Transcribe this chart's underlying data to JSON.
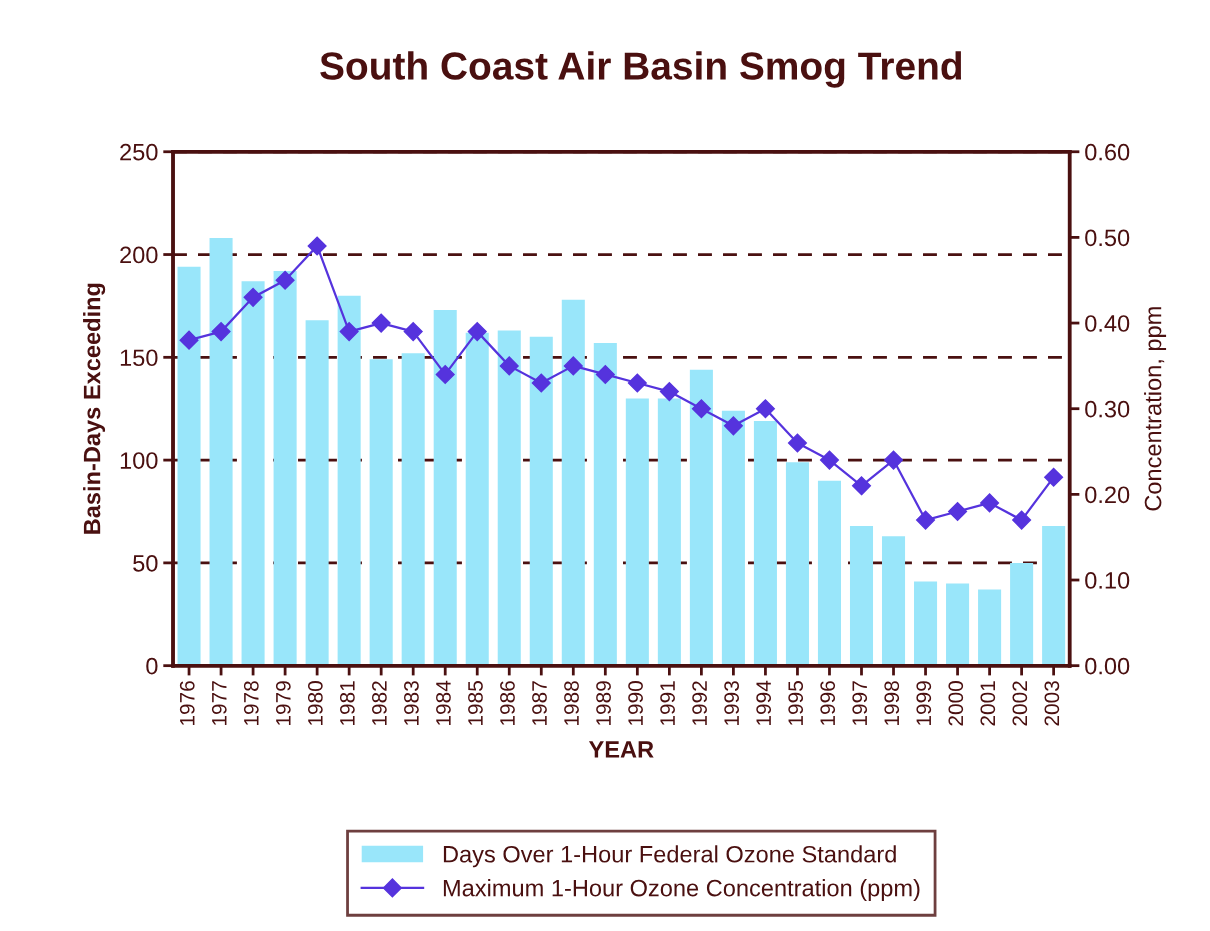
{
  "chart_data": {
    "type": "bar",
    "title": "South Coast Air Basin Smog Trend",
    "xlabel": "YEAR",
    "ylabel": "Basin-Days Exceeding",
    "y2label": "Concentration, ppm",
    "categories": [
      "1976",
      "1977",
      "1978",
      "1979",
      "1980",
      "1981",
      "1982",
      "1983",
      "1984",
      "1985",
      "1986",
      "1987",
      "1988",
      "1989",
      "1990",
      "1991",
      "1992",
      "1993",
      "1994",
      "1995",
      "1996",
      "1997",
      "1998",
      "1999",
      "2000",
      "2001",
      "2002",
      "2003"
    ],
    "series": [
      {
        "name": "Days Over 1-Hour Federal Ozone Standard",
        "color": "#99e6fa",
        "values": [
          194,
          208,
          187,
          192,
          168,
          180,
          149,
          152,
          173,
          162,
          163,
          160,
          178,
          157,
          130,
          130,
          144,
          124,
          119,
          99,
          90,
          68,
          63,
          41,
          40,
          37,
          50,
          68
        ]
      },
      {
        "name": "Maximum 1-Hour Ozone Concentration (ppm)",
        "type": "line",
        "axis": "y2",
        "color": "#5533dd",
        "marker": "diamond",
        "line_style": "solid",
        "values": [
          0.38,
          0.39,
          0.43,
          0.45,
          0.49,
          0.39,
          0.4,
          0.39,
          0.34,
          0.39,
          0.35,
          0.33,
          0.35,
          0.34,
          0.33,
          0.32,
          0.3,
          0.28,
          0.3,
          0.26,
          0.24,
          0.21,
          0.24,
          0.17,
          0.18,
          0.19,
          0.17,
          0.22
        ]
      }
    ],
    "ylim": [
      0,
      250
    ],
    "yticks": [
      0,
      50,
      100,
      150,
      200,
      250
    ],
    "y2lim": [
      0,
      0.6
    ],
    "y2ticks": [
      {
        "value": 0,
        "label": "0.00"
      },
      {
        "value": 0.1,
        "label": "0.10"
      },
      {
        "value": 0.2,
        "label": "0.20"
      },
      {
        "value": 0.3,
        "label": "0.30"
      },
      {
        "value": 0.4,
        "label": "0.40"
      },
      {
        "value": 0.5,
        "label": "0.50"
      },
      {
        "value": 0.6,
        "label": "0.60"
      }
    ],
    "grid": "y",
    "legend": "bottom"
  }
}
